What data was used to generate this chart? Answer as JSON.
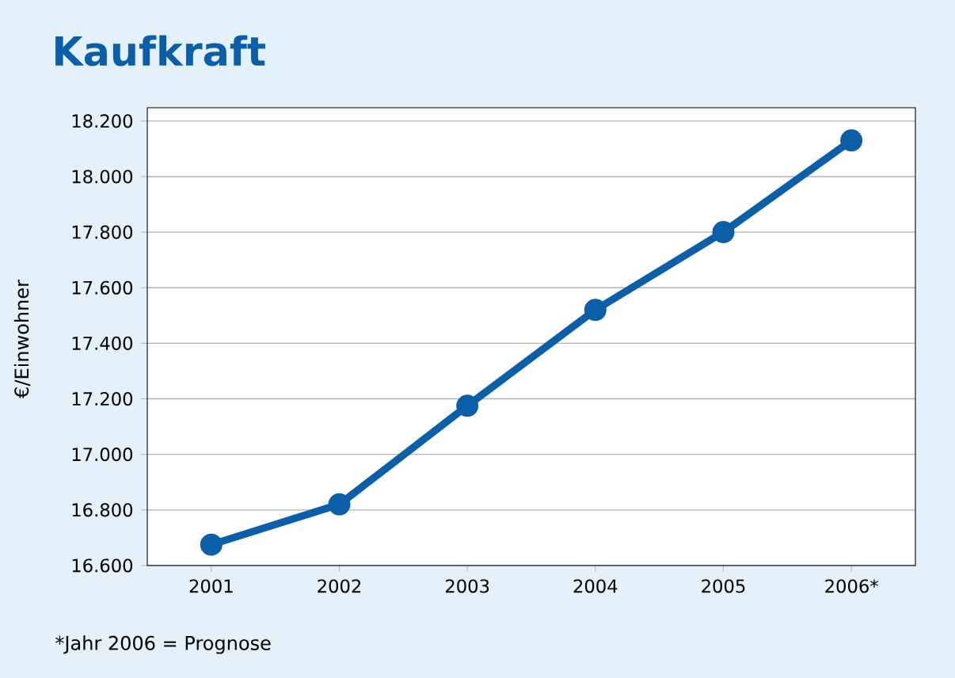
{
  "chart_data": {
    "type": "line",
    "title": "Kaufkraft",
    "ylabel": "€/Einwohner",
    "categories": [
      "2001",
      "2002",
      "2003",
      "2004",
      "2005",
      "2006*"
    ],
    "series": [
      {
        "color": "#0b5fa8",
        "values": [
          16675,
          16820,
          17175,
          17520,
          17800,
          18130
        ]
      }
    ],
    "ylim": [
      16600,
      18200
    ],
    "yticks": [
      {
        "value": 16600,
        "label": "16.600"
      },
      {
        "value": 16800,
        "label": "16.800"
      },
      {
        "value": 17000,
        "label": "17.000"
      },
      {
        "value": 17200,
        "label": "17.200"
      },
      {
        "value": 17400,
        "label": "17.400"
      },
      {
        "value": 17600,
        "label": "17.600"
      },
      {
        "value": 17800,
        "label": "17.800"
      },
      {
        "value": 18000,
        "label": "18.000"
      },
      {
        "value": 18200,
        "label": "18.200"
      }
    ],
    "grid": "y",
    "marker": "circle",
    "line_style": "solid",
    "annotations": [
      "*Jahr 2006 = Prognose"
    ]
  }
}
